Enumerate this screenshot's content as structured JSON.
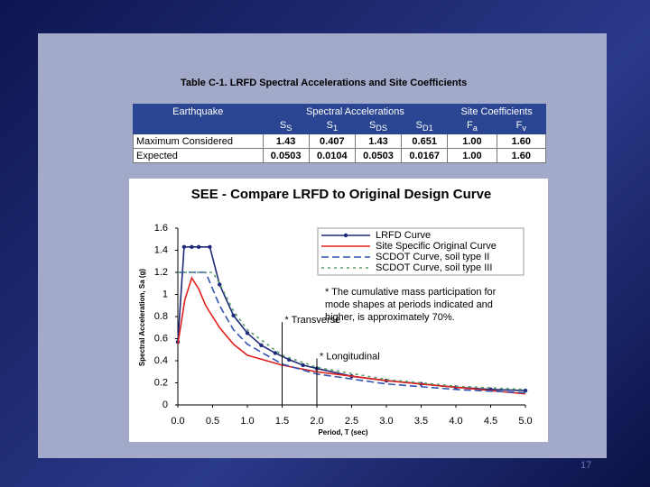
{
  "slide_number": "17",
  "table": {
    "title": "Table C-1. LRFD Spectral Accelerations and Site Coefficients",
    "header": [
      "Earthquake",
      "Spectral Accelerations",
      "Site Coefficients"
    ],
    "subheader": [
      {
        "main": "S",
        "sub": "S"
      },
      {
        "main": "S",
        "sub": "1"
      },
      {
        "main": "S",
        "sub": "DS"
      },
      {
        "main": "S",
        "sub": "D1"
      },
      {
        "main": "F",
        "sub": "a"
      },
      {
        "main": "F",
        "sub": "v"
      }
    ],
    "rows": [
      {
        "cells": [
          "Maximum Considered",
          "1.43",
          "0.407",
          "1.43",
          "0.651",
          "1.00",
          "1.60"
        ]
      },
      {
        "cells": [
          "Expected",
          "0.0503",
          "0.0104",
          "0.0503",
          "0.0167",
          "1.00",
          "1.60"
        ]
      }
    ]
  },
  "chart_data": {
    "type": "line",
    "title": "SEE - Compare LRFD to Original Design Curve",
    "x_label": "Period, T (sec)",
    "y_label": "Spectral Acceleration, Sa (g)",
    "xlim": [
      0,
      5
    ],
    "ylim": [
      0,
      1.6
    ],
    "xticks": [
      {
        "value": 0,
        "label": "0.0"
      },
      0.5,
      {
        "value": 1,
        "label": "1.0"
      },
      1.5,
      {
        "value": 2,
        "label": "2.0"
      },
      2.5,
      {
        "value": 3,
        "label": "3.0"
      },
      3.5,
      {
        "value": 4,
        "label": "4.0"
      },
      4.5,
      {
        "value": 5,
        "label": "5.0"
      }
    ],
    "yticks": [
      0,
      0.2,
      0.4,
      0.6,
      0.8,
      1,
      1.2,
      1.4,
      1.6
    ],
    "series": [
      {
        "name": "LRFD Curve",
        "color": "#1f2a7a",
        "style": "markers",
        "x": [
          0,
          0.09,
          0.2,
          0.3,
          0.46,
          0.6,
          0.8,
          1.0,
          1.2,
          1.4,
          1.6,
          1.8,
          2.0,
          2.5,
          3.0,
          3.5,
          4.0,
          4.5,
          5.0
        ],
        "values": [
          0.57,
          1.43,
          1.43,
          1.43,
          1.43,
          1.09,
          0.81,
          0.65,
          0.54,
          0.47,
          0.41,
          0.36,
          0.33,
          0.26,
          0.22,
          0.19,
          0.16,
          0.14,
          0.13
        ]
      },
      {
        "name": "Site Specific Original Curve",
        "color": "#e0201b",
        "style": "solid",
        "x": [
          0,
          0.1,
          0.2,
          0.3,
          0.4,
          0.6,
          0.8,
          1.0,
          1.5,
          2.0,
          3.0,
          4.0,
          5.0
        ],
        "values": [
          0.55,
          0.95,
          1.15,
          1.05,
          0.9,
          0.7,
          0.55,
          0.45,
          0.36,
          0.3,
          0.22,
          0.16,
          0.1
        ]
      },
      {
        "name": "SCDOT Curve, soil type II",
        "color": "#3355b0",
        "style": "dashed",
        "x": [
          0,
          0.4,
          0.6,
          0.8,
          1.0,
          1.5,
          2.0,
          3.0,
          4.0,
          5.0
        ],
        "values": [
          1.2,
          1.2,
          0.9,
          0.68,
          0.55,
          0.37,
          0.28,
          0.19,
          0.14,
          0.11
        ]
      },
      {
        "name": "SCDOT Curve, soil type III",
        "color": "#5a9e6a",
        "style": "dotted",
        "x": [
          0,
          0.5,
          0.6,
          0.8,
          1.0,
          1.5,
          2.0,
          3.0,
          4.0,
          5.0
        ],
        "values": [
          1.2,
          1.2,
          1.1,
          0.85,
          0.68,
          0.45,
          0.34,
          0.23,
          0.17,
          0.14
        ]
      }
    ],
    "legend": "upper right",
    "note_lines": [
      "* The cumulative mass participation for",
      "mode shapes at periods indicated and",
      "higher, is approximately 70%."
    ],
    "markers": [
      {
        "label": "* Transverse",
        "x": 1.5,
        "y": 0.75
      },
      {
        "label": "* Longitudinal",
        "x": 2.0,
        "y": 0.42
      }
    ]
  }
}
